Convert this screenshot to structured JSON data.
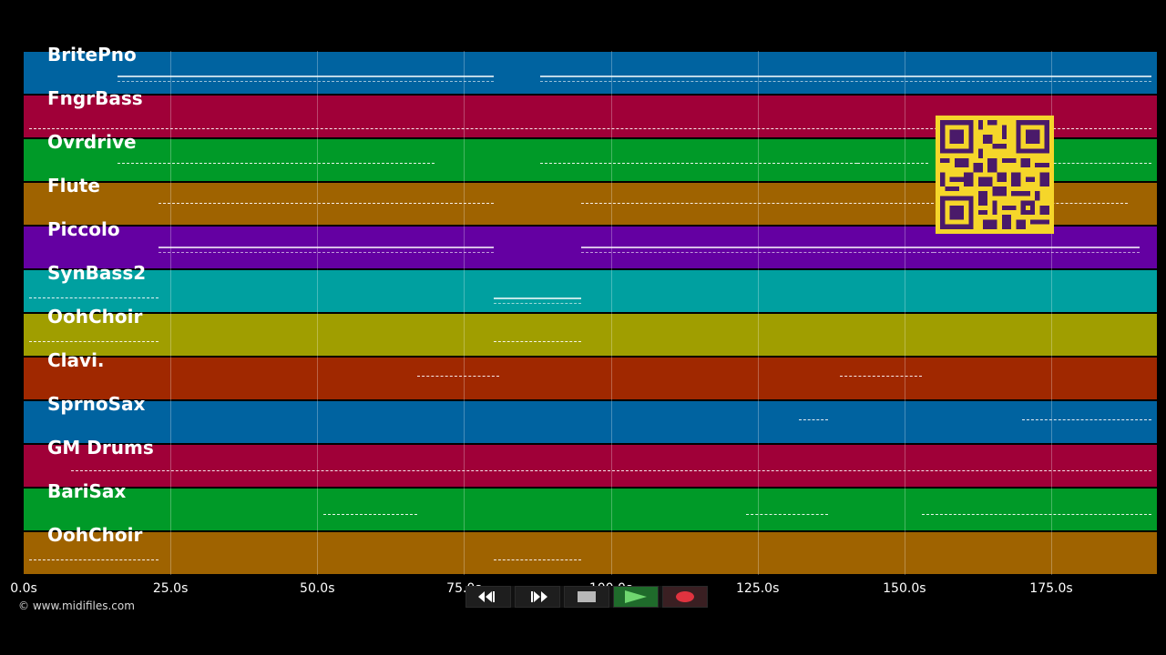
{
  "tracks": [
    {
      "name": "BritePno",
      "color": "#0063a0"
    },
    {
      "name": "FngrBass",
      "color": "#a00038"
    },
    {
      "name": "Ovrdrive",
      "color": "#009a28"
    },
    {
      "name": "Flute",
      "color": "#9f6300"
    },
    {
      "name": "Piccolo",
      "color": "#6400a2"
    },
    {
      "name": "SynBass2",
      "color": "#00a0a0"
    },
    {
      "name": "OohChoir",
      "color": "#a09e00"
    },
    {
      "name": "Clavi.",
      "color": "#a02800"
    },
    {
      "name": "SprnoSax",
      "color": "#0063a0"
    },
    {
      "name": "GM Drums",
      "color": "#a00038"
    },
    {
      "name": "BariSax",
      "color": "#009a28"
    },
    {
      "name": "OohChoir",
      "color": "#9f6300"
    }
  ],
  "timeline": {
    "max_seconds": 193,
    "ticks": [
      {
        "seconds": 0,
        "label": "0.0s"
      },
      {
        "seconds": 25,
        "label": "25.0s"
      },
      {
        "seconds": 50,
        "label": "50.0s"
      },
      {
        "seconds": 75,
        "label": "75.0s"
      },
      {
        "seconds": 100,
        "label": "100.0s"
      },
      {
        "seconds": 125,
        "label": "125.0s"
      },
      {
        "seconds": 150,
        "label": "150.0s"
      },
      {
        "seconds": 175,
        "label": "175.0s"
      }
    ]
  },
  "footer": {
    "copyright": "© www.midifiles.com"
  },
  "controls": [
    {
      "name": "rewind-button",
      "icon": "rewind-icon"
    },
    {
      "name": "fast-forward-button",
      "icon": "fast-forward-icon"
    },
    {
      "name": "stop-button",
      "icon": "stop-icon"
    },
    {
      "name": "play-button",
      "icon": "play-icon"
    },
    {
      "name": "record-button",
      "icon": "record-icon"
    }
  ],
  "overlay": {
    "qr_icon": "qr-code-icon",
    "qr_color": "#f5d62a",
    "qr_fg": "#4a1a6a"
  }
}
